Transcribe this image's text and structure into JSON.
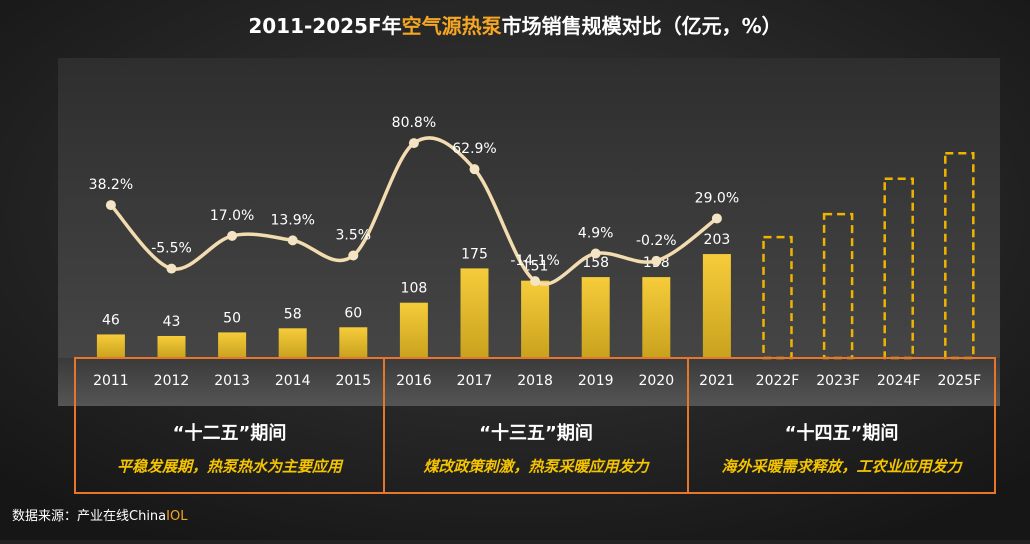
{
  "chart_data": {
    "type": "bar_line",
    "title": [
      "2011-2025F年",
      "空气源热泵",
      "市场销售规模对比（亿元，%）"
    ],
    "source": [
      "数据来源：产业在线China",
      "IOL"
    ],
    "categories": [
      "2011",
      "2012",
      "2013",
      "2014",
      "2015",
      "2016",
      "2017",
      "2018",
      "2019",
      "2020",
      "2021",
      "2022F",
      "2023F",
      "2024F",
      "2025F"
    ],
    "ylim": [
      0,
      582
    ],
    "y2lim": [
      -67,
      138
    ],
    "series": [
      {
        "color": "#e8b820",
        "values": [
          46,
          43,
          50,
          58,
          60,
          108,
          175,
          151,
          158,
          158,
          203,
          null,
          null,
          null,
          null
        ]
      },
      {
        "color": "#f0b400",
        "style": "dashed",
        "values": [
          null,
          null,
          null,
          null,
          null,
          null,
          null,
          null,
          null,
          null,
          null,
          236,
          281,
          350,
          400
        ]
      },
      {
        "type": "line",
        "axis": "y2",
        "color": "#f2dcb0",
        "values": [
          38.2,
          -5.5,
          17.0,
          13.9,
          3.5,
          80.8,
          62.9,
          -14.1,
          4.9,
          -0.2,
          29.0,
          null,
          null,
          null,
          null
        ],
        "value_labels": [
          "38.2%",
          "-5.5%",
          "17.0%",
          "13.9%",
          "3.5%",
          "80.8%",
          "62.9%",
          "-14.1%",
          "4.9%",
          "-0.2%",
          "29.0%",
          null,
          null,
          null,
          null
        ]
      }
    ],
    "periods": [
      {
        "title": "“十二五”期间",
        "subtitle": "平稳发展期，热泵热水为主要应用"
      },
      {
        "title": "“十三五”期间",
        "subtitle": "煤改政策刺激，热泵采暖应用发力"
      },
      {
        "title": "“十四五”期间",
        "subtitle": "海外采暖需求释放，工农业应用发力"
      }
    ]
  }
}
